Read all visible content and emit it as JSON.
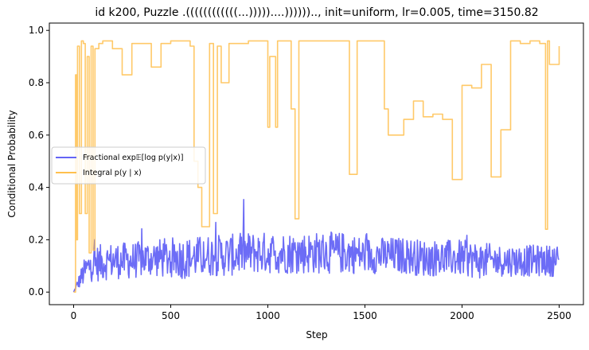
{
  "chart_data": {
    "type": "line",
    "title": "id k200, Puzzle .((((((((((((...)))))....)))))).., init=uniform, lr=0.005, time=3150.82",
    "xlabel": "Step",
    "ylabel": "Conditional Probability",
    "xlim": [
      -125,
      2625
    ],
    "ylim": [
      -0.048,
      1.028
    ],
    "xticks": [
      0,
      500,
      1000,
      1500,
      2000,
      2500
    ],
    "yticks": [
      0.0,
      0.2,
      0.4,
      0.6,
      0.8,
      1.0
    ],
    "xtick_labels": [
      "0",
      "500",
      "1000",
      "1500",
      "2000",
      "2500"
    ],
    "ytick_labels": [
      "0.0",
      "0.2",
      "0.4",
      "0.6",
      "0.8",
      "1.0"
    ],
    "grid": false,
    "legend_position": "center-left",
    "series": [
      {
        "name": "Fractional exp𝔼[log p(y|x)]",
        "color": "#6464f5",
        "style": "noisy",
        "x": [
          0,
          20,
          50,
          80,
          120,
          200,
          300,
          400,
          500,
          600,
          700,
          800,
          900,
          1000,
          1100,
          1200,
          1300,
          1400,
          1500,
          1600,
          1700,
          1800,
          1900,
          2000,
          2100,
          2200,
          2300,
          2400,
          2450,
          2500
        ],
        "y": [
          0.0,
          0.03,
          0.07,
          0.1,
          0.11,
          0.12,
          0.12,
          0.13,
          0.13,
          0.13,
          0.14,
          0.14,
          0.15,
          0.15,
          0.15,
          0.15,
          0.15,
          0.15,
          0.14,
          0.14,
          0.14,
          0.13,
          0.13,
          0.13,
          0.12,
          0.12,
          0.12,
          0.12,
          0.12,
          0.12
        ],
        "spread": [
          0.0,
          0.02,
          0.05,
          0.06,
          0.07,
          0.07,
          0.07,
          0.07,
          0.08,
          0.08,
          0.08,
          0.08,
          0.08,
          0.08,
          0.08,
          0.08,
          0.08,
          0.08,
          0.07,
          0.07,
          0.07,
          0.07,
          0.07,
          0.07,
          0.07,
          0.06,
          0.06,
          0.06,
          0.06,
          0.06
        ]
      },
      {
        "name": "Integral p(y | x)",
        "color": "#ffc04d",
        "style": "step",
        "x": [
          0,
          10,
          15,
          20,
          30,
          40,
          50,
          60,
          70,
          80,
          90,
          100,
          110,
          130,
          150,
          200,
          250,
          300,
          400,
          450,
          500,
          600,
          620,
          640,
          660,
          700,
          720,
          740,
          760,
          800,
          900,
          1000,
          1010,
          1040,
          1050,
          1100,
          1120,
          1140,
          1160,
          1200,
          1300,
          1400,
          1420,
          1460,
          1500,
          1600,
          1620,
          1700,
          1750,
          1800,
          1850,
          1900,
          1950,
          2000,
          2050,
          2100,
          2150,
          2200,
          2250,
          2300,
          2350,
          2400,
          2430,
          2440,
          2450,
          2500
        ],
        "y": [
          0.0,
          0.83,
          0.2,
          0.94,
          0.3,
          0.96,
          0.95,
          0.3,
          0.9,
          0.15,
          0.94,
          0.16,
          0.93,
          0.95,
          0.96,
          0.93,
          0.83,
          0.95,
          0.86,
          0.95,
          0.96,
          0.94,
          0.5,
          0.4,
          0.25,
          0.95,
          0.3,
          0.94,
          0.8,
          0.95,
          0.96,
          0.63,
          0.9,
          0.63,
          0.96,
          0.96,
          0.7,
          0.28,
          0.96,
          0.96,
          0.96,
          0.96,
          0.45,
          0.96,
          0.96,
          0.7,
          0.6,
          0.66,
          0.73,
          0.67,
          0.68,
          0.66,
          0.43,
          0.79,
          0.78,
          0.87,
          0.44,
          0.62,
          0.96,
          0.95,
          0.96,
          0.95,
          0.24,
          0.96,
          0.87,
          0.94
        ]
      }
    ]
  }
}
